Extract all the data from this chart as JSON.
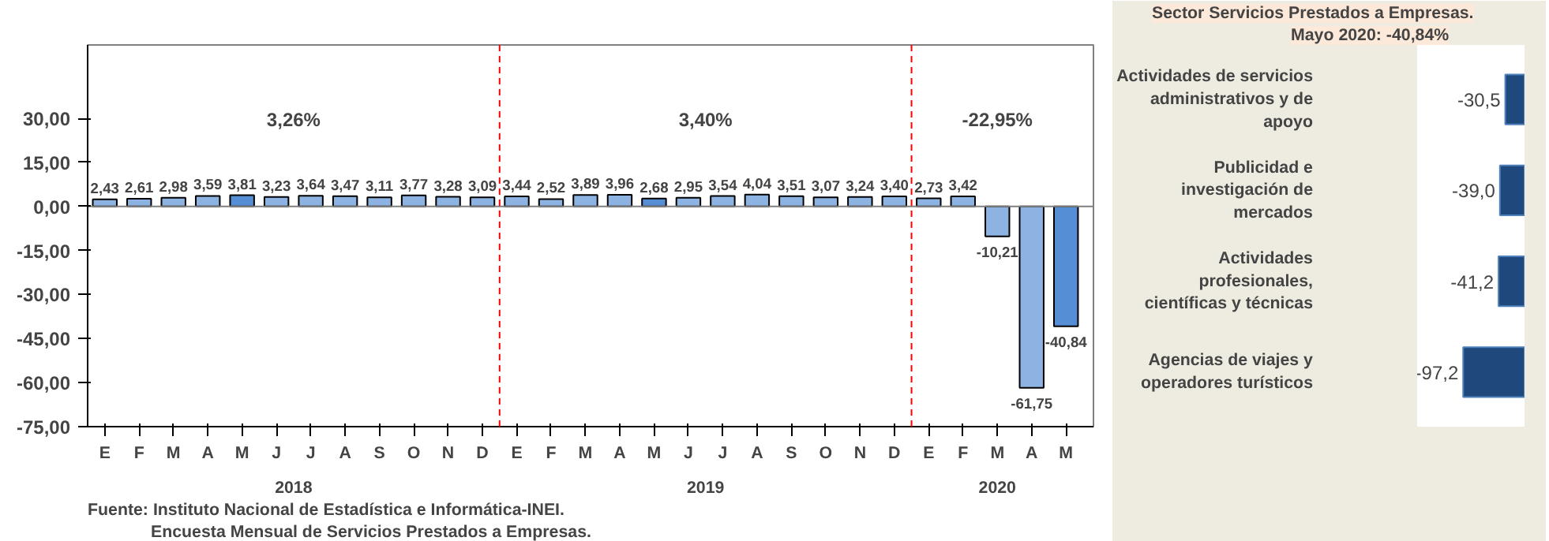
{
  "chart_data": [
    {
      "type": "bar",
      "categories": [
        "E",
        "F",
        "M",
        "A",
        "M",
        "J",
        "J",
        "A",
        "S",
        "O",
        "N",
        "D",
        "E",
        "F",
        "M",
        "A",
        "M",
        "J",
        "J",
        "A",
        "S",
        "O",
        "N",
        "D",
        "E",
        "F",
        "M",
        "A",
        "M"
      ],
      "values": [
        2.43,
        2.61,
        2.98,
        3.59,
        3.81,
        3.23,
        3.64,
        3.47,
        3.11,
        3.77,
        3.28,
        3.09,
        3.44,
        2.52,
        3.89,
        3.96,
        2.68,
        2.95,
        3.54,
        4.04,
        3.51,
        3.07,
        3.24,
        3.4,
        2.73,
        3.42,
        -10.21,
        -61.75,
        -40.84
      ],
      "value_labels": [
        "2,43",
        "2,61",
        "2,98",
        "3,59",
        "3,81",
        "3,23",
        "3,64",
        "3,47",
        "3,11",
        "3,77",
        "3,28",
        "3,09",
        "3,44",
        "2,52",
        "3,89",
        "3,96",
        "2,68",
        "2,95",
        "3,54",
        "4,04",
        "3,51",
        "3,07",
        "3,24",
        "3,40",
        "2,73",
        "3,42",
        "-10,21",
        "-61,75",
        "-40,84"
      ],
      "colors": [
        "#8db3e2",
        "#8db3e2",
        "#8db3e2",
        "#8db3e2",
        "#558ed5",
        "#8db3e2",
        "#8db3e2",
        "#8db3e2",
        "#8db3e2",
        "#8db3e2",
        "#8db3e2",
        "#8db3e2",
        "#8db3e2",
        "#8db3e2",
        "#8db3e2",
        "#8db3e2",
        "#558ed5",
        "#8db3e2",
        "#8db3e2",
        "#8db3e2",
        "#8db3e2",
        "#8db3e2",
        "#8db3e2",
        "#8db3e2",
        "#8db3e2",
        "#8db3e2",
        "#8db3e2",
        "#8db3e2",
        "#558ed5"
      ],
      "ylim": [
        -75,
        55
      ],
      "yticks": [
        {
          "value": 30,
          "label": "30,00"
        },
        {
          "value": 15,
          "label": "15,00"
        },
        {
          "value": 0,
          "label": "0,00"
        },
        {
          "value": -15,
          "label": "-15,00"
        },
        {
          "value": -30,
          "label": "-30,00"
        },
        {
          "value": -45,
          "label": "-45,00"
        },
        {
          "value": -60,
          "label": "-60,00"
        },
        {
          "value": -75,
          "label": "-75,00"
        }
      ],
      "annotations": [
        "3,26%",
        "3,40%",
        "-22,95%",
        "2018",
        "2019",
        "2020",
        "Fuente:  Instituto Nacional de Estadística e Informática-INEI.",
        "Encuesta Mensual de Servicios Prestados a Empresas."
      ],
      "grid": false
    },
    {
      "type": "bar",
      "orientation": "horizontal",
      "title": "Sector Servicios Prestados a Empresas.",
      "subtitle": "Mayo 2020: -40,84%",
      "categories": [
        "Actividades de servicios administrativos y de apoyo",
        "Publicidad e investigación de mercados",
        "Actividades profesionales, científicas y técnicas",
        "Agencias de viajes y operadores turísticos"
      ],
      "values": [
        -30.5,
        -39.0,
        -41.2,
        -97.2
      ],
      "value_labels": [
        "-30,5",
        "-39,0",
        "-41,2",
        "-97,2"
      ],
      "color": "#1f497d",
      "grid": false
    }
  ]
}
